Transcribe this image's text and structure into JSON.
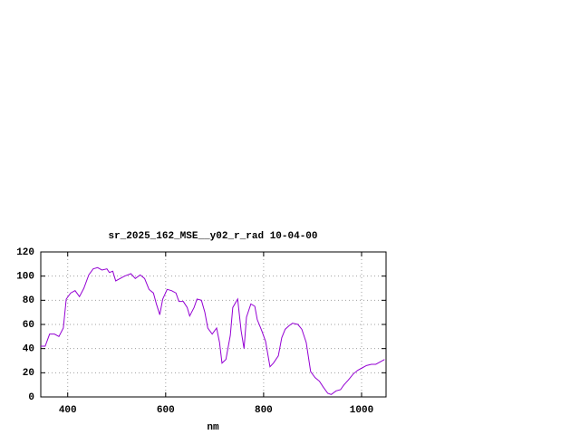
{
  "chart_data": {
    "type": "line",
    "title": "sr_2025_162_MSE__y02_r_rad 10-04-00",
    "x_label": "nm",
    "x": [
      345,
      354,
      363,
      373,
      382,
      391,
      397,
      406,
      415,
      424,
      433,
      443,
      452,
      461,
      470,
      480,
      485,
      492,
      498,
      507,
      516,
      529,
      538,
      548,
      557,
      566,
      575,
      581,
      588,
      594,
      603,
      612,
      621,
      627,
      636,
      644,
      649,
      658,
      664,
      673,
      680,
      686,
      695,
      704,
      710,
      715,
      723,
      732,
      737,
      747,
      754,
      760,
      765,
      774,
      782,
      787,
      796,
      804,
      813,
      820,
      830,
      837,
      844,
      852,
      859,
      870,
      878,
      887,
      896,
      905,
      914,
      922,
      931,
      938,
      948,
      957,
      964,
      973,
      983,
      992,
      1001,
      1010,
      1020,
      1029,
      1038,
      1047
    ],
    "series": [
      {
        "color": "#9400d3",
        "values": [
          42,
          42,
          52,
          52,
          50,
          57,
          81,
          86,
          88,
          83,
          90,
          101,
          106,
          107,
          105,
          106,
          103,
          104,
          96,
          98,
          100,
          102,
          98,
          101,
          98,
          89,
          86,
          77,
          68,
          81,
          89,
          88,
          86,
          79,
          79,
          74,
          67,
          74,
          81,
          80,
          70,
          57,
          52,
          57,
          45,
          28,
          31,
          51,
          74,
          81,
          55,
          40,
          66,
          77,
          75,
          64,
          55,
          46,
          25,
          28,
          34,
          49,
          56,
          59,
          61,
          60,
          56,
          45,
          21,
          16,
          13,
          8,
          3,
          2,
          5,
          6,
          10,
          14,
          19,
          22,
          24,
          26,
          27,
          27,
          29,
          31
        ]
      }
    ],
    "xlim": [
      345,
      1050
    ],
    "ylim": [
      0,
      120
    ],
    "xticks": [
      400,
      600,
      800,
      1000
    ],
    "yticks": [
      0,
      20,
      40,
      60,
      80,
      100,
      120
    ],
    "grid": true
  }
}
